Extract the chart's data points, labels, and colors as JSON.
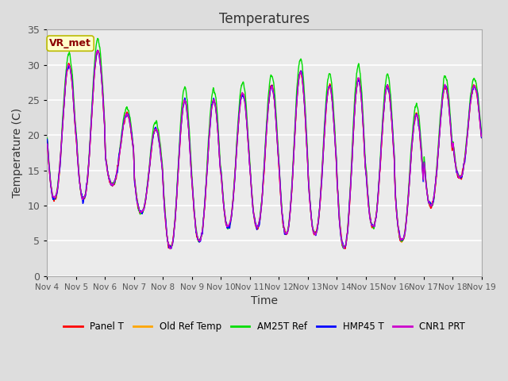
{
  "title": "Temperatures",
  "xlabel": "Time",
  "ylabel": "Temperature (C)",
  "ylim": [
    0,
    35
  ],
  "xlim": [
    0,
    15
  ],
  "x_tick_labels": [
    "Nov 4",
    "Nov 5",
    "Nov 6",
    "Nov 7",
    "Nov 8",
    "Nov 9",
    "Nov 10",
    "Nov 11",
    "Nov 12",
    "Nov 13",
    "Nov 14",
    "Nov 15",
    "Nov 16",
    "Nov 17",
    "Nov 18",
    "Nov 19"
  ],
  "annotation_text": "VR_met",
  "annotation_bbox_facecolor": "#FFFFCC",
  "annotation_bbox_edgecolor": "#BBBB00",
  "annotation_text_color": "#8B0000",
  "background_color": "#DDDDDD",
  "plot_bg_color": "#EBEBEB",
  "legend_entries": [
    "Panel T",
    "Old Ref Temp",
    "AM25T Ref",
    "HMP45 T",
    "CNR1 PRT"
  ],
  "line_colors": [
    "#FF0000",
    "#FFA500",
    "#00DD00",
    "#0000FF",
    "#CC00CC"
  ],
  "grid_color": "#FFFFFF",
  "tick_label_color": "#555555",
  "title_color": "#333333",
  "day_peaks": [
    30,
    32,
    23,
    21,
    25,
    25,
    26,
    27,
    29,
    27,
    28,
    27,
    23,
    27,
    27
  ],
  "day_troughs": [
    11,
    11,
    13,
    9,
    4,
    5,
    7,
    7,
    6,
    6,
    4,
    7,
    5,
    10,
    14
  ]
}
